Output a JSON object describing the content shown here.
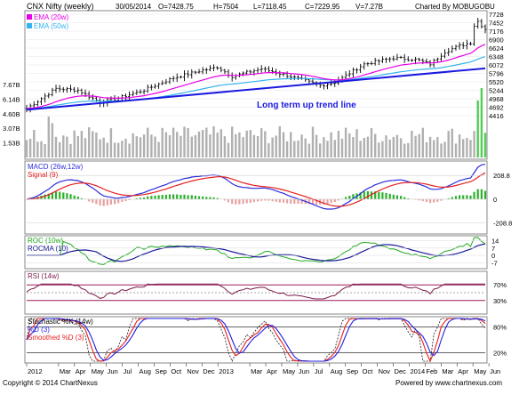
{
  "header": {
    "symbol": "CNX Nifty (weekly)",
    "date": "30/05/2014",
    "open": "O=7428.75",
    "high": "H=7504",
    "low": "L=7118.45",
    "close": "C=7229.95",
    "volume": "V=7.27B",
    "charted_by": "Charted By MOBUGOBU"
  },
  "footer": {
    "copyright": "Copyright © 2014 ChartNexus",
    "powered": "Powered by www.chartnexus.com"
  },
  "colors": {
    "price_bar": "#000000",
    "ema20": "#e800e8",
    "ema50": "#33b3ee",
    "trend": "#1a1ae0",
    "volume": "#b0b0b0",
    "volume_recent": "#55cc55",
    "macd": "#2c2cdd",
    "signal": "#e62020",
    "hist_pos": "#2bb02b",
    "hist_neg": "#e8a0a0",
    "roc": "#22aa22",
    "rocma": "#1a1a99",
    "rsi": "#7a1a4a",
    "stoch_k": "#1a1a1a",
    "stoch_d": "#e62020",
    "stoch_smooth": "#2020e0",
    "band": "#9a1a5a"
  },
  "x_axis": {
    "labels": [
      "2012",
      "Mar",
      "Apr",
      "May",
      "Jun",
      "Jul",
      "Aug",
      "Sep",
      "Oct",
      "Nov",
      "Dec",
      "2013",
      "Mar",
      "Apr",
      "May",
      "Jun",
      "Jul",
      "Aug",
      "Sep",
      "Oct",
      "Nov",
      "Dec",
      "2014",
      "Feb",
      "Mar",
      "Apr",
      "May",
      "Jun"
    ]
  },
  "chart_data": [
    {
      "type": "line",
      "panel": "price",
      "legend": [
        "EMA (20w)",
        "EMA (50w)"
      ],
      "annotation": "Long term up trend line",
      "y_ticks": [
        7728,
        7452,
        7176,
        6900,
        6624,
        6348,
        6072,
        5796,
        5520,
        5244,
        4968,
        4692,
        4416
      ],
      "ylim": [
        4416,
        7728
      ],
      "volume_ticks": [
        "7.67B",
        "6.14B",
        "4.60B",
        "3.07B",
        "1.53B"
      ],
      "volume_max": 7.67,
      "price": {
        "start": 4650,
        "end": 7229.95,
        "high": 7504
      },
      "trend_line": {
        "start": 4610,
        "end": 5960
      }
    },
    {
      "type": "line",
      "panel": "macd",
      "legend": [
        "MACD (26w,12w)",
        "Signal (9)"
      ],
      "y_ticks": [
        208.8,
        0,
        -208.8
      ],
      "ylim": [
        -290,
        320
      ]
    },
    {
      "type": "line",
      "panel": "roc",
      "legend": [
        "ROC (10w)",
        "ROCMA (10)"
      ],
      "y_ticks": [
        14,
        7,
        0,
        -7
      ],
      "ylim": [
        -11,
        17
      ]
    },
    {
      "type": "line",
      "panel": "rsi",
      "legend": [
        "RSI (14w)"
      ],
      "y_ticks": [
        "70%",
        "30%"
      ],
      "bands": [
        70,
        30
      ],
      "ylim": [
        0,
        100
      ]
    },
    {
      "type": "line",
      "panel": "stochastic",
      "legend": [
        "Stochastic %K (14w)",
        "%D (3)",
        "Smoothed %D (3)"
      ],
      "y_ticks": [
        "80%",
        "20%"
      ],
      "bands": [
        80,
        20
      ],
      "ylim": [
        0,
        100
      ]
    }
  ]
}
